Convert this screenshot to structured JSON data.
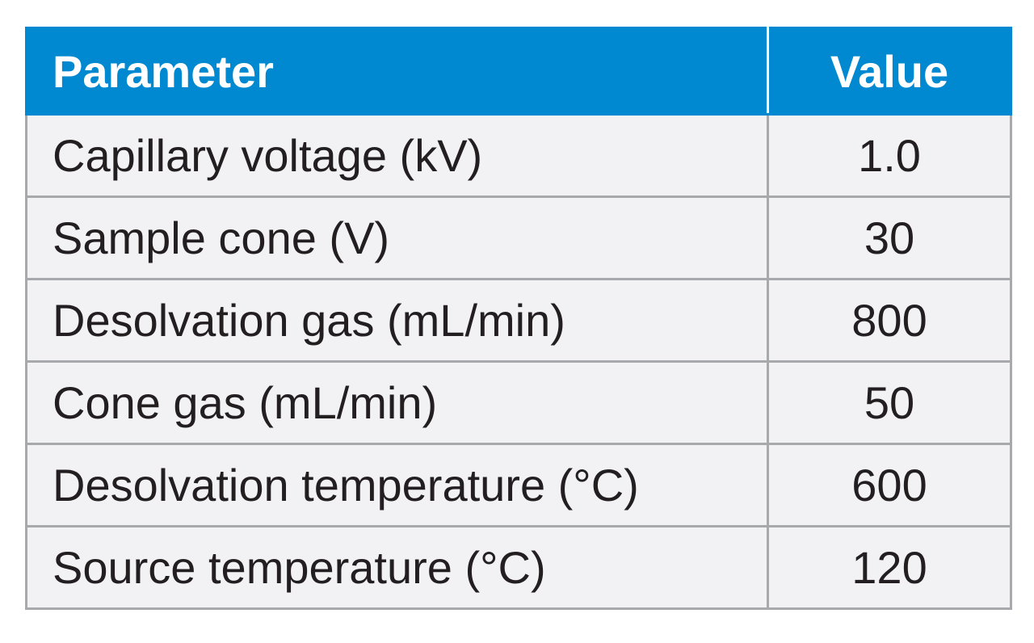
{
  "table": {
    "headers": {
      "parameter": "Parameter",
      "value": "Value"
    },
    "rows": [
      {
        "parameter": "Capillary voltage (kV)",
        "value": "1.0"
      },
      {
        "parameter": "Sample cone (V)",
        "value": "30"
      },
      {
        "parameter": "Desolvation gas (mL/min)",
        "value": "800"
      },
      {
        "parameter": "Cone gas (mL/min)",
        "value": "50"
      },
      {
        "parameter": "Desolvation temperature (°C)",
        "value": "600"
      },
      {
        "parameter": "Source temperature (°C)",
        "value": "120"
      }
    ]
  },
  "colors": {
    "header_background": "#0089d0",
    "header_text": "#ffffff",
    "row_background": "#f2f2f4",
    "row_text": "#231f20",
    "border": "#a7a9ac"
  }
}
